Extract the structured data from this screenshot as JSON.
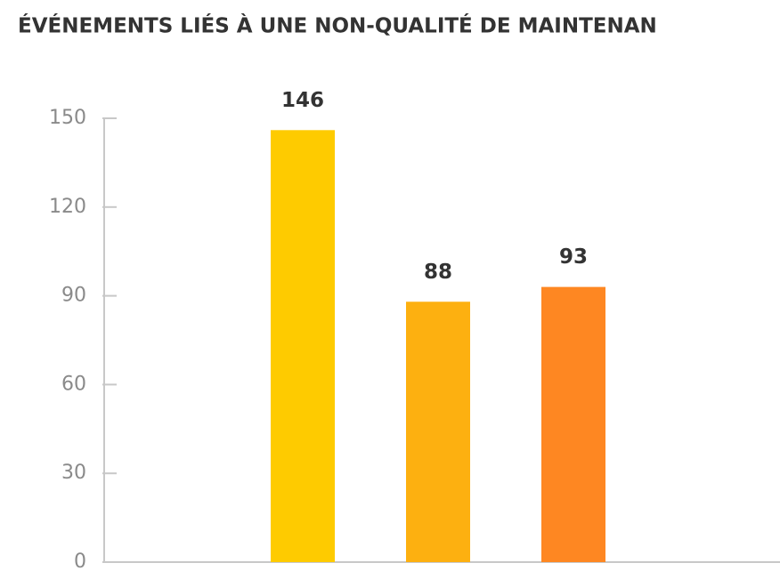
{
  "chart_data": {
    "type": "bar",
    "title": "ÉVÉNEMENTS LIÉS À UNE NON-QUALITÉ DE MAINTENAN",
    "categories": [
      null,
      null,
      null
    ],
    "values": [
      146,
      88,
      93
    ],
    "colors": [
      "#fecb00",
      "#fdb010",
      "#fe8722"
    ],
    "ylim": [
      0,
      150
    ],
    "yticks": [
      0,
      30,
      60,
      90,
      120,
      150
    ],
    "grid": false
  }
}
